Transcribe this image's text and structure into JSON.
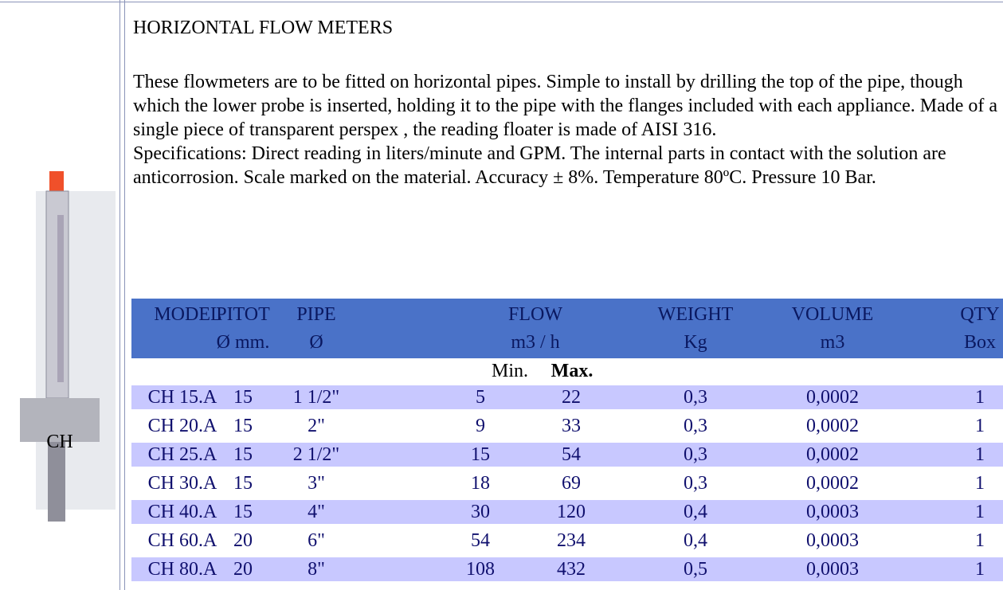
{
  "sidebar": {
    "caption": "CH"
  },
  "header": {
    "title": "HORIZONTAL FLOW METERS"
  },
  "paragraphs": [
    "These flowmeters are to be fitted on horizontal pipes. Simple to install by drilling the top of the pipe, though which the lower probe is inserted, holding it to the pipe with the flanges included with each appliance. Made of a single piece of transparent perspex , the reading floater is made of AISI 316.",
    "Specifications: Direct reading in liters/minute and GPM. The internal parts in contact with the solution are anticorrosion. Scale marked on the material. Accuracy ± 8%. Temperature 80ºC. Pressure 10 Bar."
  ],
  "table": {
    "headers": [
      {
        "line1": "MODEL",
        "line2": null
      },
      {
        "line1": "PITOT",
        "line2": "Ø mm."
      },
      {
        "line1": "PIPE",
        "line2": "Ø"
      },
      {
        "line1": "FLOW",
        "line2": "m3 / h"
      },
      {
        "line1": "WEIGHT",
        "line2": "Kg"
      },
      {
        "line1": "VOLUME",
        "line2": "m3"
      },
      {
        "line1": "QTY",
        "line2": "Box"
      }
    ],
    "subheaders": [
      "Min.",
      "Max."
    ],
    "rows": [
      [
        "CH 15.A",
        "15",
        "1 1/2\"",
        "5",
        "22",
        "0,3",
        "0,0002",
        "1"
      ],
      [
        "CH 20.A",
        "15",
        "2\"",
        "9",
        "33",
        "0,3",
        "0,0002",
        "1"
      ],
      [
        "CH 25.A",
        "15",
        "2 1/2\"",
        "15",
        "54",
        "0,3",
        "0,0002",
        "1"
      ],
      [
        "CH 30.A",
        "15",
        "3\"",
        "18",
        "69",
        "0,3",
        "0,0002",
        "1"
      ],
      [
        "CH 40.A",
        "15",
        "4\"",
        "30",
        "120",
        "0,4",
        "0,0003",
        "1"
      ],
      [
        "CH 60.A",
        "20",
        "6\"",
        "54",
        "234",
        "0,4",
        "0,0003",
        "1"
      ],
      [
        "CH 80.A",
        "20",
        "8\"",
        "108",
        "432",
        "0,5",
        "0,0003",
        "1"
      ]
    ]
  }
}
